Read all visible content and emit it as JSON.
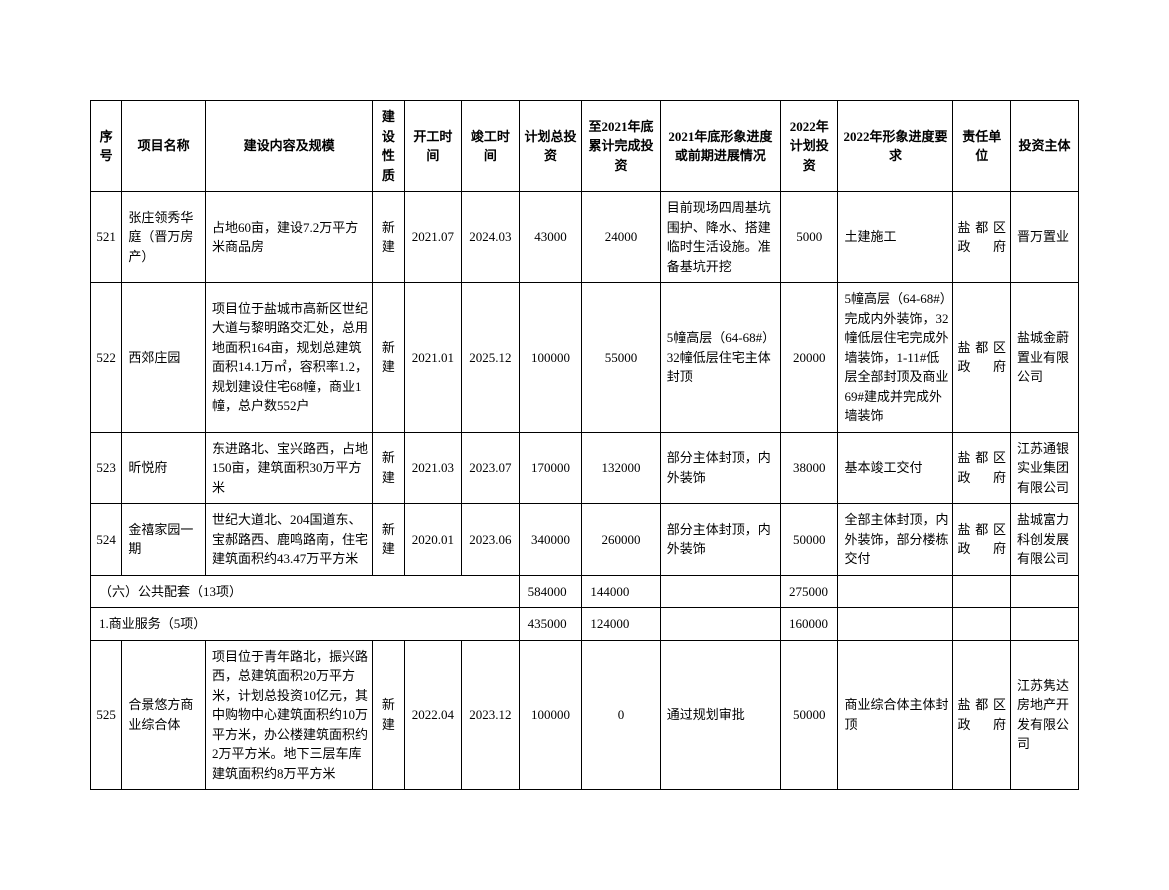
{
  "columns": [
    {
      "key": "seq",
      "label": "序号"
    },
    {
      "key": "name",
      "label": "项目名称"
    },
    {
      "key": "content",
      "label": "建设内容及规模"
    },
    {
      "key": "nature",
      "label": "建设性质"
    },
    {
      "key": "start",
      "label": "开工时间"
    },
    {
      "key": "end",
      "label": "竣工时间"
    },
    {
      "key": "plan_inv",
      "label": "计划总投资"
    },
    {
      "key": "cum_2021",
      "label": "至2021年底累计完成投资"
    },
    {
      "key": "prog_2021",
      "label": "2021年底形象进度或前期进展情况"
    },
    {
      "key": "inv_2022",
      "label": "2022年计划投资"
    },
    {
      "key": "req_2022",
      "label": "2022年形象进度要求"
    },
    {
      "key": "resp",
      "label": "责任单位"
    },
    {
      "key": "investor",
      "label": "投资主体"
    }
  ],
  "rows": [
    {
      "type": "data",
      "seq": "521",
      "name": "张庄领秀华庭（晋万房产）",
      "content": "占地60亩，建设7.2万平方米商品房",
      "nature": "新建",
      "start": "2021.07",
      "end": "2024.03",
      "plan_inv": "43000",
      "cum_2021": "24000",
      "prog_2021": "目前现场四周基坑围护、降水、搭建临时生活设施。准备基坑开挖",
      "inv_2022": "5000",
      "req_2022": "土建施工",
      "resp": "盐都区政府",
      "investor": "晋万置业"
    },
    {
      "type": "data",
      "seq": "522",
      "name": "西郊庄园",
      "content": "项目位于盐城市高新区世纪大道与黎明路交汇处，总用地面积164亩，规划总建筑面积14.1万㎡，容积率1.2，规划建设住宅68幢，商业1幢，总户数552户",
      "nature": "新建",
      "start": "2021.01",
      "end": "2025.12",
      "plan_inv": "100000",
      "cum_2021": "55000",
      "prog_2021": "5幢高层（64-68#）32幢低层住宅主体封顶",
      "inv_2022": "20000",
      "req_2022": "5幢高层（64-68#）完成内外装饰，32幢低层住宅完成外墙装饰，1-11#低层全部封顶及商业69#建成并完成外墙装饰",
      "resp": "盐都区政府",
      "investor": "盐城金蔚置业有限公司"
    },
    {
      "type": "data",
      "seq": "523",
      "name": "昕悦府",
      "content": "东进路北、宝兴路西，占地150亩，建筑面积30万平方米",
      "nature": "新建",
      "start": "2021.03",
      "end": "2023.07",
      "plan_inv": "170000",
      "cum_2021": "132000",
      "prog_2021": "部分主体封顶，内外装饰",
      "inv_2022": "38000",
      "req_2022": "基本竣工交付",
      "resp": "盐都区政府",
      "investor": "江苏通银实业集团有限公司"
    },
    {
      "type": "data",
      "seq": "524",
      "name": "金禧家园一期",
      "content": "世纪大道北、204国道东、宝郝路西、鹿鸣路南，住宅建筑面积约43.47万平方米",
      "nature": "新建",
      "start": "2020.01",
      "end": "2023.06",
      "plan_inv": "340000",
      "cum_2021": "260000",
      "prog_2021": "部分主体封顶，内外装饰",
      "inv_2022": "50000",
      "req_2022": "全部主体封顶，内外装饰，部分楼栋交付",
      "resp": "盐都区政府",
      "investor": "盐城富力科创发展有限公司"
    },
    {
      "type": "section",
      "label": "（六）公共配套（13项）",
      "plan_inv": "584000",
      "cum_2021": "144000",
      "inv_2022": "275000"
    },
    {
      "type": "section",
      "label": "1.商业服务（5项）",
      "plan_inv": "435000",
      "cum_2021": "124000",
      "inv_2022": "160000"
    },
    {
      "type": "data",
      "seq": "525",
      "name": "合景悠方商业综合体",
      "content": "项目位于青年路北，振兴路西，总建筑面积20万平方米，计划总投资10亿元，其中购物中心建筑面积约10万平方米，办公楼建筑面积约2万平方米。地下三层车库建筑面积约8万平方米",
      "nature": "新建",
      "start": "2022.04",
      "end": "2023.12",
      "plan_inv": "100000",
      "cum_2021": "0",
      "prog_2021": "通过规划审批",
      "inv_2022": "50000",
      "req_2022": "商业综合体主体封顶",
      "resp": "盐都区政府",
      "investor": "江苏隽达房地产开发有限公司"
    }
  ]
}
